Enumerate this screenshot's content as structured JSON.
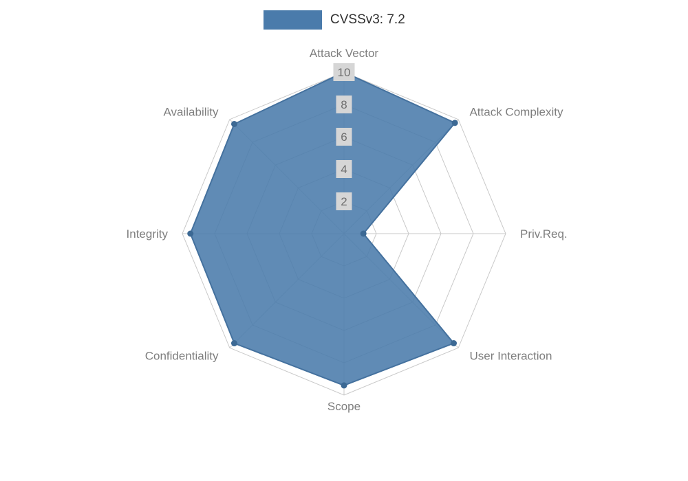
{
  "legend": {
    "label": "CVSSv3: 7.2"
  },
  "chart_data": {
    "type": "radar",
    "title": "",
    "legend": [
      {
        "label": "CVSSv3: 7.2"
      }
    ],
    "axes": [
      "Attack Vector",
      "Attack Complexity",
      "Priv.Req.",
      "User Interaction",
      "Scope",
      "Confidentiality",
      "Integrity",
      "Availability"
    ],
    "series": [
      {
        "name": "CVSSv3: 7.2",
        "values": [
          10,
          9.7,
          1.2,
          9.6,
          9.4,
          9.6,
          9.5,
          9.6
        ]
      }
    ],
    "scale": {
      "min": 0,
      "max": 10,
      "ticks": [
        2,
        4,
        6,
        8,
        10
      ]
    },
    "grid": {
      "rings": [
        2,
        4,
        6,
        8,
        10
      ],
      "shape": "polygon",
      "visible": true
    },
    "style": {
      "fill": "#4a7bab",
      "fill_opacity": 0.88,
      "stroke": "#44719e",
      "point_color": "#3c6994",
      "grid_color": "#c9c9c9",
      "tick_box_fill": "#d6d6d6",
      "tick_text_color": "#6e6e6e",
      "axis_label_color": "#7d7d7d",
      "legend_text_color": "#2f2f2f"
    },
    "layout": {
      "center_x": 500,
      "center_y": 340,
      "radius": 235,
      "legend_position": "top-center",
      "start_axis": "top",
      "direction": "clockwise"
    }
  }
}
